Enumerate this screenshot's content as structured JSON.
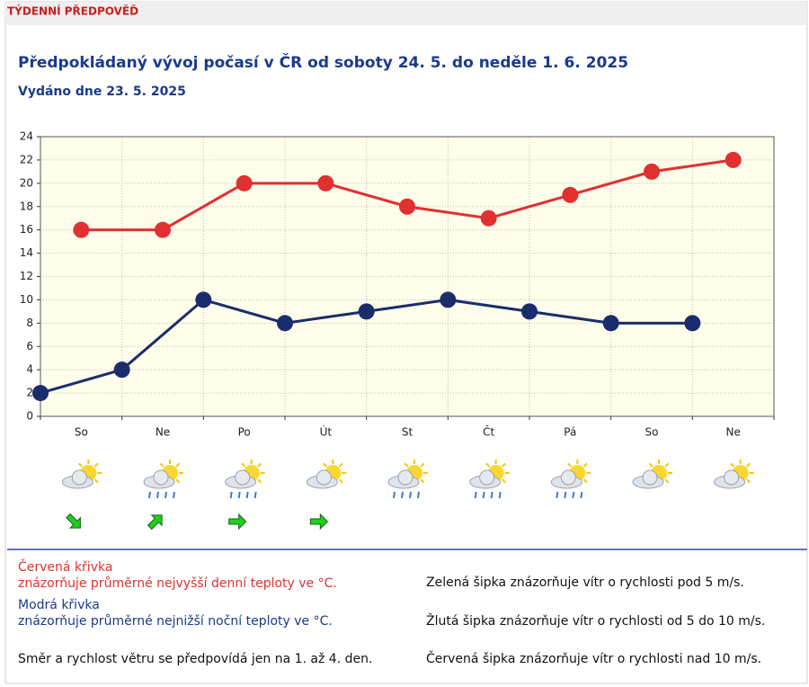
{
  "header": {
    "label": "TÝDENNÍ PŘEDPOVĚĎ"
  },
  "chart_data": {
    "type": "line",
    "title": "Předpokládaný vývoj počasí v ČR od soboty 24. 5. do neděle 1. 6. 2025",
    "subtitle": "Vydáno dne 23. 5. 2025",
    "categories": [
      "So",
      "Ne",
      "Po",
      "Út",
      "St",
      "Čt",
      "Pá",
      "So",
      "Ne"
    ],
    "series": [
      {
        "name": "Červená křivka",
        "color": "#e03030",
        "align": "center",
        "values": [
          16,
          16,
          20,
          20,
          18,
          17,
          19,
          21,
          22
        ]
      },
      {
        "name": "Modrá křivka",
        "color": "#1a2c6b",
        "align": "edge",
        "values": [
          2,
          4,
          10,
          8,
          9,
          10,
          9,
          8,
          8
        ]
      }
    ],
    "ylim": [
      0,
      24
    ],
    "yticks": [
      0,
      2,
      4,
      6,
      8,
      10,
      12,
      14,
      16,
      18,
      20,
      22,
      24
    ],
    "grid": true
  },
  "notes": {
    "red_text": "znázorňuje průměrné nejvyšší denní teploty ve °C.",
    "blue_text": "znázorňuje průměrné nejnižší noční teploty ve °C.",
    "wind": "Směr a rychlost větru se předpovídá jen na 1. až 4. den.",
    "green": "Zelená šipka znázorňuje vítr o rychlosti pod 5 m/s.",
    "yellow": "Žlutá šipka znázorňuje vítr o rychlosti od 5 do 10 m/s.",
    "red_arrow": "Červená šipka znázorňuje vítr o rychlosti nad 10 m/s."
  }
}
